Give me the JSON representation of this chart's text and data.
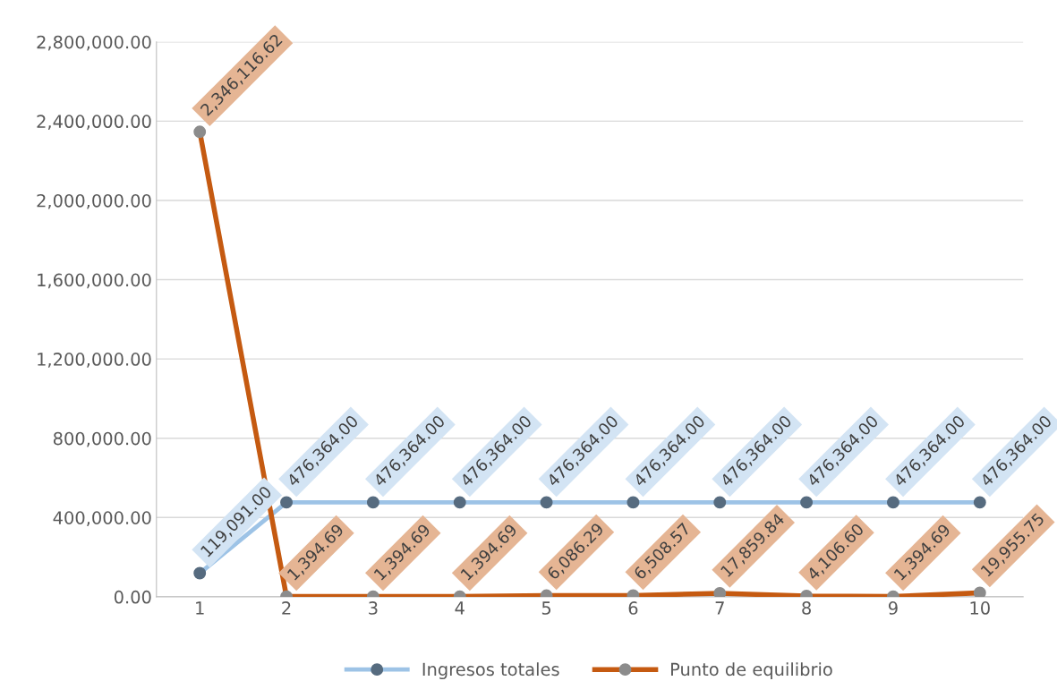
{
  "chart_data": {
    "type": "line",
    "categories": [
      "1",
      "2",
      "3",
      "4",
      "5",
      "6",
      "7",
      "8",
      "9",
      "10"
    ],
    "series": [
      {
        "name": "Ingresos totales",
        "color": "#9dc3e6",
        "values": [
          119091.0,
          476364.0,
          476364.0,
          476364.0,
          476364.0,
          476364.0,
          476364.0,
          476364.0,
          476364.0,
          476364.0
        ],
        "value_labels": [
          "119,091.00",
          "476,364.00",
          "476,364.00",
          "476,364.00",
          "476,364.00",
          "476,364.00",
          "476,364.00",
          "476,364.00",
          "476,364.00",
          "476,364.00"
        ]
      },
      {
        "name": "Punto de equilibrio",
        "color": "#c55a11",
        "values": [
          2346116.62,
          1394.69,
          1394.69,
          1394.69,
          6086.29,
          6508.57,
          17859.84,
          4106.6,
          1394.69,
          19955.75
        ],
        "value_labels": [
          "2,346,116.62",
          "1,394.69",
          "1,394.69",
          "1,394.69",
          "6,086.29",
          "6,508.57",
          "17,859.84",
          "4,106.60",
          "1,394.69",
          "19,955.75"
        ]
      }
    ],
    "ylim": [
      0,
      2800000
    ],
    "yticks": [
      {
        "value": 0,
        "label": "0.00"
      },
      {
        "value": 400000,
        "label": "400,000.00"
      },
      {
        "value": 800000,
        "label": "800,000.00"
      },
      {
        "value": 1200000,
        "label": "1,200,000.00"
      },
      {
        "value": 1600000,
        "label": "1,600,000.00"
      },
      {
        "value": 2000000,
        "label": "2,000,000.00"
      },
      {
        "value": 2400000,
        "label": "2,400,000.00"
      },
      {
        "value": 2800000,
        "label": "2,800,000.00"
      }
    ],
    "grid": "y",
    "legend": "bottom",
    "marker": "circle",
    "line_style": "solid"
  }
}
